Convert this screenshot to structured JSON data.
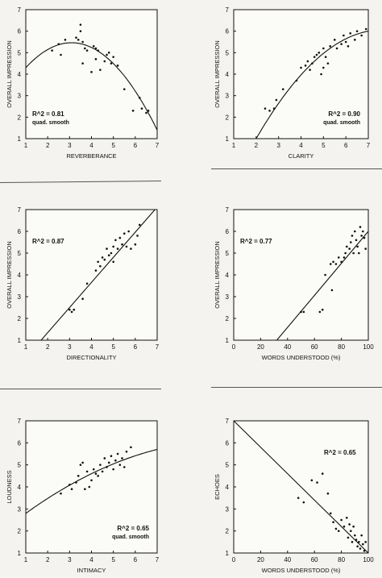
{
  "chart_data": [
    {
      "type": "scatter",
      "xlabel": "REVERBERANCE",
      "ylabel": "OVERALL IMPRESSION",
      "xlim": [
        1,
        7
      ],
      "ylim": [
        1,
        7
      ],
      "xticks": [
        "1",
        "2",
        "3",
        "4",
        "5",
        "6",
        "7"
      ],
      "yticks": [
        "1",
        "2",
        "3",
        "4",
        "5",
        "6",
        "7"
      ],
      "annotation": [
        "R^2 = 0.81",
        "quad. smooth"
      ],
      "annotation_position": "bottom-left",
      "fit": "quadratic",
      "fit_points": {
        "x": [
          1.0,
          3.3,
          7.0
        ],
        "y": [
          4.3,
          5.45,
          1.4
        ]
      },
      "points": {
        "x": [
          2.2,
          2.5,
          2.6,
          2.8,
          3.3,
          3.4,
          3.5,
          3.5,
          3.6,
          3.6,
          3.7,
          3.8,
          4.0,
          4.1,
          4.2,
          4.2,
          4.3,
          4.4,
          4.6,
          4.7,
          4.8,
          4.9,
          5.0,
          5.2,
          5.5,
          5.9,
          6.2,
          6.3,
          6.5,
          6.6
        ],
        "y": [
          5.1,
          5.4,
          4.9,
          5.6,
          5.7,
          5.6,
          6.3,
          6.0,
          5.5,
          4.5,
          5.2,
          5.1,
          4.1,
          5.3,
          5.2,
          4.7,
          5.1,
          4.2,
          4.6,
          4.9,
          5.0,
          4.5,
          4.8,
          4.4,
          3.3,
          2.3,
          2.9,
          2.4,
          2.2,
          2.3
        ]
      }
    },
    {
      "type": "scatter",
      "xlabel": "CLARITY",
      "ylabel": "OVERALL IMPRESSION",
      "xlim": [
        1,
        7
      ],
      "ylim": [
        1,
        7
      ],
      "xticks": [
        "1",
        "2",
        "3",
        "4",
        "5",
        "6",
        "7"
      ],
      "yticks": [
        "1",
        "2",
        "3",
        "4",
        "5",
        "6",
        "7"
      ],
      "annotation": [
        "R^2 = 0.90",
        "quad. smooth"
      ],
      "annotation_position": "bottom-right",
      "fit": "quadratic",
      "fit_points": {
        "x": [
          2.0,
          4.3,
          7.0
        ],
        "y": [
          1.0,
          4.3,
          6.0
        ]
      },
      "points": {
        "x": [
          2.4,
          2.6,
          2.8,
          2.9,
          3.2,
          3.8,
          4.0,
          4.2,
          4.3,
          4.4,
          4.5,
          4.6,
          4.7,
          4.8,
          4.9,
          5.0,
          5.0,
          5.1,
          5.2,
          5.3,
          5.5,
          5.6,
          5.8,
          5.9,
          6.0,
          6.1,
          6.2,
          6.4,
          6.5,
          6.7,
          6.9
        ],
        "y": [
          2.4,
          2.3,
          2.4,
          2.8,
          3.3,
          3.7,
          4.3,
          4.4,
          4.6,
          4.2,
          4.5,
          4.8,
          4.9,
          5.0,
          4.0,
          4.3,
          5.2,
          4.8,
          4.5,
          5.3,
          5.6,
          5.2,
          5.4,
          5.8,
          5.5,
          5.3,
          5.9,
          5.6,
          6.0,
          5.8,
          6.1
        ]
      }
    },
    {
      "type": "scatter",
      "xlabel": "DIRECTIONALITY",
      "ylabel": "OVERALL IMPRESSION",
      "xlim": [
        1,
        7
      ],
      "ylim": [
        1,
        7
      ],
      "xticks": [
        "1",
        "2",
        "3",
        "4",
        "5",
        "6",
        "7"
      ],
      "yticks": [
        "1",
        "2",
        "3",
        "4",
        "5",
        "6",
        "7"
      ],
      "annotation": [
        "R^2 = 0.87"
      ],
      "annotation_position": "top-left",
      "fit": "linear",
      "fit_points": {
        "x": [
          1.7,
          6.9
        ],
        "y": [
          1.0,
          7.0
        ]
      },
      "points": {
        "x": [
          3.0,
          3.1,
          3.2,
          3.6,
          3.8,
          4.2,
          4.3,
          4.4,
          4.5,
          4.6,
          4.7,
          4.8,
          4.9,
          5.0,
          5.0,
          5.1,
          5.2,
          5.3,
          5.4,
          5.5,
          5.6,
          5.7,
          5.8,
          6.0,
          6.1,
          6.2
        ],
        "y": [
          2.4,
          2.3,
          2.4,
          2.9,
          3.6,
          4.2,
          4.6,
          4.4,
          4.8,
          4.7,
          5.2,
          4.9,
          5.0,
          5.3,
          4.6,
          5.6,
          5.2,
          5.7,
          5.4,
          5.9,
          5.3,
          6.0,
          5.2,
          5.4,
          5.8,
          6.3
        ]
      }
    },
    {
      "type": "scatter",
      "xlabel": "WORDS UNDERSTOOD (%)",
      "ylabel": "OVERALL IMPRESSION",
      "xlim": [
        0,
        100
      ],
      "ylim": [
        1,
        7
      ],
      "xticks": [
        "0",
        "20",
        "40",
        "60",
        "80",
        "100"
      ],
      "yticks": [
        "1",
        "2",
        "3",
        "4",
        "5",
        "6",
        "7"
      ],
      "annotation": [
        "R^2 = 0.77"
      ],
      "annotation_position": "top-left",
      "fit": "linear",
      "fit_points": {
        "x": [
          32,
          100
        ],
        "y": [
          1.0,
          6.0
        ]
      },
      "points": {
        "x": [
          50,
          52,
          64,
          66,
          68,
          72,
          73,
          74,
          76,
          78,
          80,
          82,
          83,
          84,
          86,
          87,
          88,
          89,
          90,
          91,
          92,
          93,
          94,
          95,
          96,
          97,
          98
        ],
        "y": [
          2.3,
          2.3,
          2.3,
          2.4,
          4.0,
          4.5,
          3.3,
          4.6,
          4.5,
          4.8,
          4.6,
          4.8,
          5.0,
          5.3,
          5.2,
          5.5,
          5.8,
          5.0,
          6.0,
          5.6,
          5.3,
          5.0,
          6.2,
          5.8,
          6.0,
          5.7,
          5.2
        ]
      }
    },
    {
      "type": "scatter",
      "xlabel": "INTIMACY",
      "ylabel": "LOUDNESS",
      "xlim": [
        1,
        7
      ],
      "ylim": [
        1,
        7
      ],
      "xticks": [
        "1",
        "2",
        "3",
        "4",
        "5",
        "6",
        "7"
      ],
      "yticks": [
        "1",
        "2",
        "3",
        "4",
        "5",
        "6",
        "7"
      ],
      "annotation": [
        "R^2 = 0.65",
        "quad. smooth"
      ],
      "annotation_position": "bottom-right",
      "fit": "quadratic",
      "fit_points": {
        "x": [
          1.0,
          4.0,
          7.0
        ],
        "y": [
          2.8,
          4.6,
          5.7
        ]
      },
      "points": {
        "x": [
          2.6,
          3.0,
          3.1,
          3.3,
          3.4,
          3.5,
          3.6,
          3.7,
          3.8,
          3.9,
          4.0,
          4.1,
          4.2,
          4.3,
          4.4,
          4.5,
          4.6,
          4.7,
          4.8,
          4.9,
          5.0,
          5.1,
          5.2,
          5.3,
          5.4,
          5.5,
          5.6,
          5.8
        ],
        "y": [
          3.7,
          4.1,
          3.9,
          4.2,
          4.5,
          5.0,
          5.1,
          3.9,
          4.7,
          4.0,
          4.3,
          4.8,
          4.6,
          4.5,
          5.0,
          4.7,
          5.3,
          4.9,
          5.1,
          5.4,
          4.8,
          5.2,
          5.5,
          5.0,
          5.3,
          4.9,
          5.6,
          5.8
        ]
      }
    },
    {
      "type": "scatter",
      "xlabel": "WORDS UNDERSTOOD (%)",
      "ylabel": "ECHOES",
      "xlim": [
        0,
        100
      ],
      "ylim": [
        1,
        7
      ],
      "xticks": [
        "0",
        "20",
        "40",
        "60",
        "80",
        "100"
      ],
      "yticks": [
        "1",
        "2",
        "3",
        "4",
        "5",
        "6",
        "7"
      ],
      "annotation": [
        "R^2 = 0.65"
      ],
      "annotation_position": "top-right",
      "fit": "linear",
      "fit_points": {
        "x": [
          0,
          100
        ],
        "y": [
          7.0,
          1.0
        ]
      },
      "points": {
        "x": [
          48,
          52,
          58,
          62,
          66,
          70,
          72,
          74,
          76,
          78,
          80,
          82,
          84,
          85,
          86,
          87,
          88,
          89,
          90,
          91,
          92,
          93,
          94,
          95,
          96,
          97,
          98
        ],
        "y": [
          3.5,
          3.3,
          4.3,
          4.2,
          4.6,
          3.7,
          2.8,
          2.4,
          2.1,
          2.0,
          2.5,
          2.2,
          2.6,
          1.7,
          2.3,
          2.0,
          1.5,
          2.2,
          1.8,
          1.6,
          1.3,
          1.5,
          1.2,
          1.8,
          1.4,
          1.1,
          1.5
        ]
      }
    }
  ]
}
